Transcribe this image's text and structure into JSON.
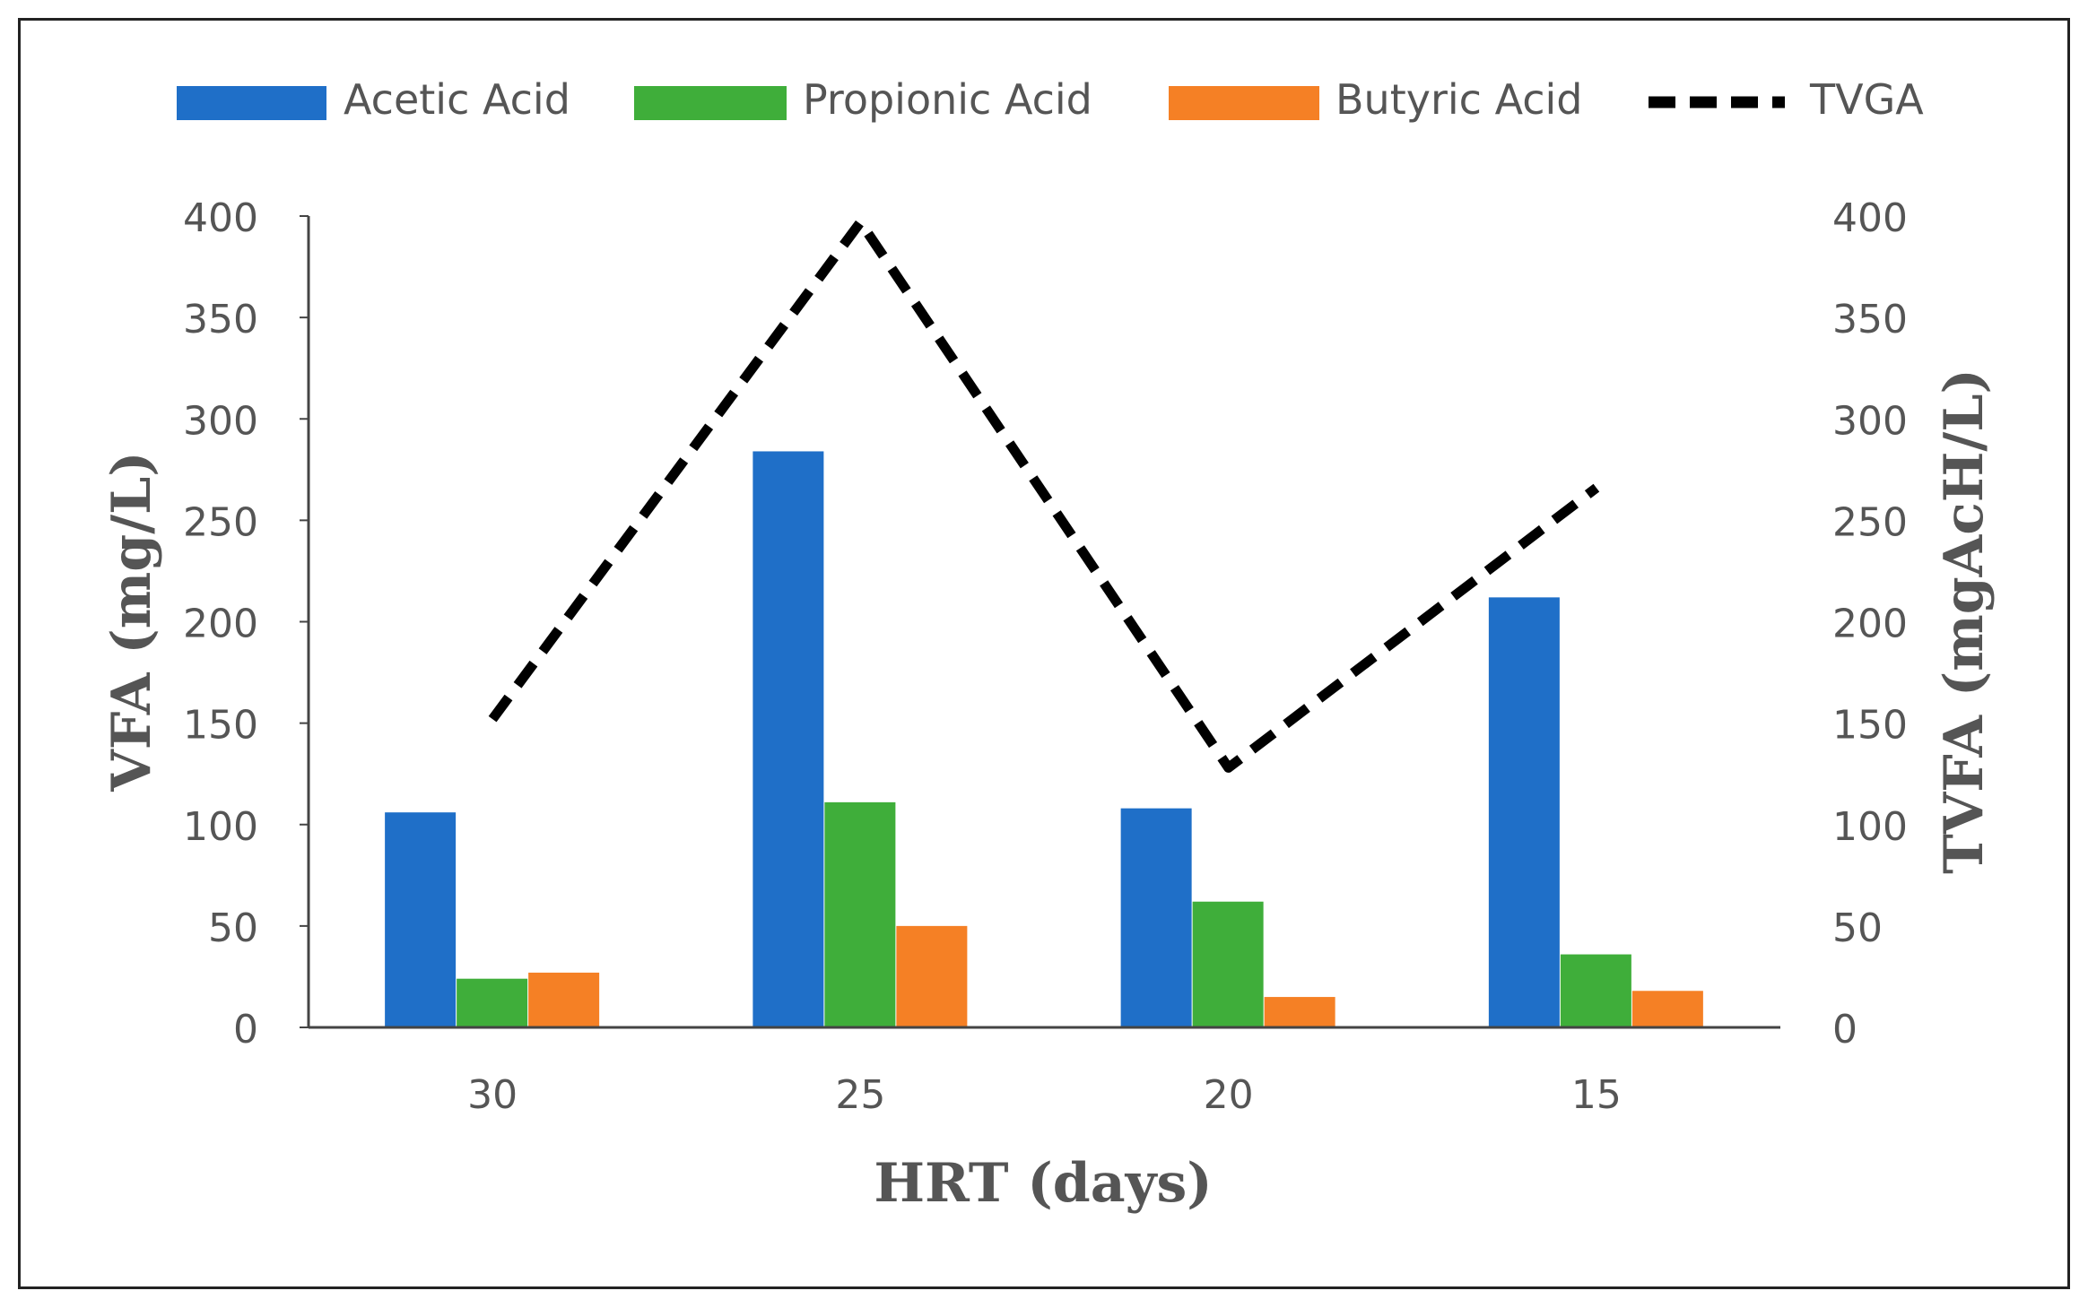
{
  "colors": {
    "acetic": "#1F6FC8",
    "propionic": "#3FAE3A",
    "butyric": "#F58025",
    "tvfa": "#000000",
    "axis": "#444444",
    "text": "#555555"
  },
  "chart_data": {
    "type": "bar",
    "categories": [
      "30",
      "25",
      "20",
      "15"
    ],
    "series": [
      {
        "name": "Acetic Acid",
        "type": "bar",
        "axis": "left",
        "values": [
          106,
          284,
          108,
          212
        ]
      },
      {
        "name": "Propionic Acid",
        "type": "bar",
        "axis": "left",
        "values": [
          24,
          111,
          62,
          36
        ]
      },
      {
        "name": "Butyric Acid",
        "type": "bar",
        "axis": "left",
        "values": [
          27,
          50,
          15,
          18
        ]
      },
      {
        "name": "TVGA",
        "type": "line",
        "style": "dashed",
        "axis": "right",
        "values": [
          152,
          397,
          128,
          266
        ]
      }
    ],
    "xlabel": "HRT (days)",
    "ylabel": "VFA (mg/L)",
    "y2label": "TVFA (mgAcH/L)",
    "ylim": [
      0,
      400
    ],
    "y2lim": [
      0,
      400
    ],
    "yticks": [
      "0",
      "50",
      "100",
      "150",
      "200",
      "250",
      "300",
      "350",
      "400"
    ],
    "y2ticks": [
      "0",
      "50",
      "100",
      "150",
      "200",
      "250",
      "300",
      "350",
      "400"
    ],
    "legend_position": "top",
    "grid": false
  }
}
